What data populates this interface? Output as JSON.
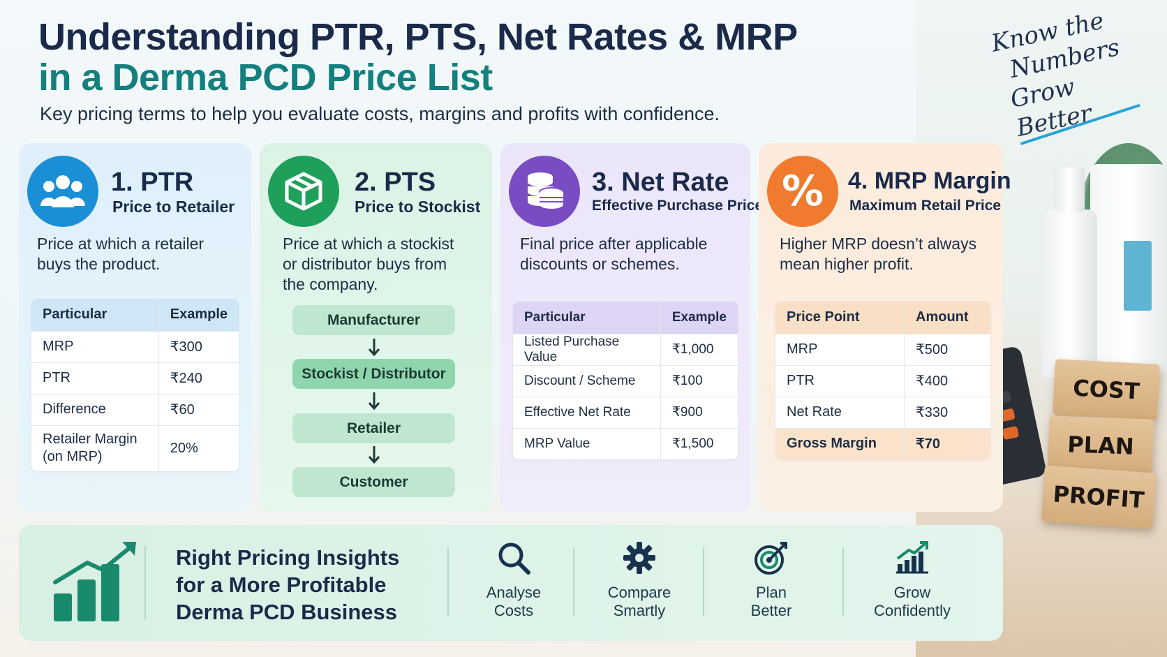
{
  "header": {
    "title_line1": "Understanding PTR, PTS, Net Rates & MRP",
    "title_line2": "in a Derma PCD Price List",
    "subtitle": "Key pricing terms to help you evaluate costs, margins and profits with confidence."
  },
  "handwritten_note": [
    "Know the",
    "Numbers",
    "Grow Better"
  ],
  "cards": [
    {
      "number_title": "1. PTR",
      "subtitle": "Price to Retailer",
      "description": "Price at which a retailer buys the product.",
      "icon": "people-group-icon",
      "accent": "#1b8fd6",
      "table": {
        "headers": [
          "Particular",
          "Example"
        ],
        "rows": [
          [
            "MRP",
            "₹300"
          ],
          [
            "PTR",
            "₹240"
          ],
          [
            "Difference",
            "₹60"
          ],
          [
            "Retailer Margin (on MRP)",
            "20%"
          ]
        ]
      }
    },
    {
      "number_title": "2. PTS",
      "subtitle": "Price to Stockist",
      "description": "Price at which a stockist or distributor buys from the company.",
      "icon": "box-icon",
      "accent": "#1ea05a",
      "flow": [
        "Manufacturer",
        "Stockist / Distributor",
        "Retailer",
        "Customer"
      ]
    },
    {
      "number_title": "3. Net Rate",
      "subtitle": "Effective Purchase Price",
      "description": "Final price after applicable discounts or schemes.",
      "icon": "coins-stack-icon",
      "accent": "#7a4cc4",
      "table": {
        "headers": [
          "Particular",
          "Example"
        ],
        "rows": [
          [
            "Listed Purchase Value",
            "₹1,000"
          ],
          [
            "Discount / Scheme",
            "₹100"
          ],
          [
            "Effective Net Rate",
            "₹900"
          ],
          [
            "MRP Value",
            "₹1,500"
          ]
        ]
      }
    },
    {
      "number_title": "4. MRP Margin",
      "subtitle": "Maximum Retail Price",
      "description": "Higher MRP doesn’t always mean higher profit.",
      "icon": "percent-icon",
      "accent": "#f07a2d",
      "table": {
        "headers": [
          "Price Point",
          "Amount"
        ],
        "rows": [
          [
            "MRP",
            "₹500"
          ],
          [
            "PTR",
            "₹400"
          ],
          [
            "Net Rate",
            "₹330"
          ],
          [
            "Gross Margin",
            "₹70"
          ]
        ]
      }
    }
  ],
  "bottom_banner": {
    "tagline": [
      "Right Pricing Insights",
      "for a More Profitable",
      "Derma PCD Business"
    ],
    "features": [
      {
        "label": [
          "Analyse",
          "Costs"
        ],
        "icon": "magnifier-icon"
      },
      {
        "label": [
          "Compare",
          "Smartly"
        ],
        "icon": "gear-icon"
      },
      {
        "label": [
          "Plan",
          "Better"
        ],
        "icon": "target-icon"
      },
      {
        "label": [
          "Grow",
          "Confidently"
        ],
        "icon": "growth-chart-icon"
      }
    ]
  },
  "blocks": [
    "COST",
    "PLAN",
    "PROFIT"
  ]
}
